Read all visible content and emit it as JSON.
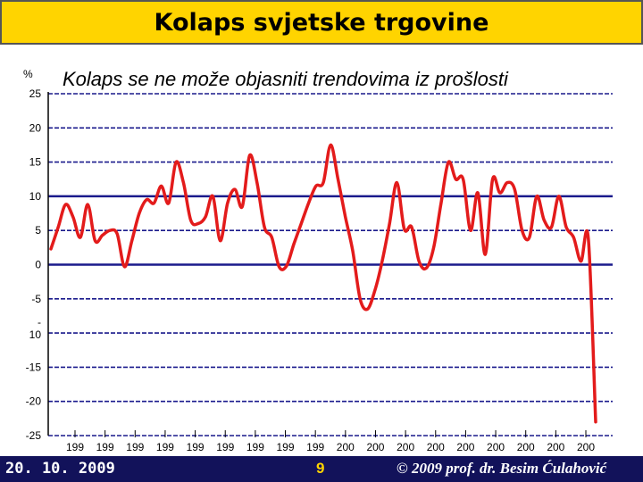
{
  "slide": {
    "title": "Kolaps svjetske trgovine",
    "footer_date": "20. 10. 2009",
    "page_number": "9",
    "copyright": "© 2009 prof. dr. Besim Ćulahović"
  },
  "colors": {
    "title_bar": "#ffd400",
    "footer": "#12125a",
    "line": "#e31b1b",
    "grid": "#1a1a8c"
  },
  "chart_data": {
    "type": "line",
    "title": "Kolaps se ne može objasniti trendovima iz prošlosti",
    "ylabel": "%",
    "ylim": [
      -25,
      25
    ],
    "yticks": [
      {
        "value": 25,
        "label": "25"
      },
      {
        "value": 20,
        "label": "20"
      },
      {
        "value": 15,
        "label": "15"
      },
      {
        "value": 10,
        "label": "10"
      },
      {
        "value": 5,
        "label": "5"
      },
      {
        "value": 0,
        "label": "0"
      },
      {
        "value": -5,
        "label": "-5"
      },
      {
        "value": -10,
        "label": "-\n10"
      },
      {
        "value": -15,
        "label": "-15"
      },
      {
        "value": -20,
        "label": "-20"
      },
      {
        "value": -25,
        "label": "-25"
      }
    ],
    "xticks": [
      "199",
      "199",
      "199",
      "199",
      "199",
      "199",
      "199",
      "199",
      "199",
      "200",
      "200",
      "200",
      "200",
      "200",
      "200",
      "200",
      "200",
      "200"
    ],
    "grid": true,
    "series": [
      {
        "values": [
          2.3,
          5.5,
          8.8,
          7,
          4,
          8.8,
          3.5,
          4.3,
          5,
          4.5,
          -0.3,
          3.5,
          7.5,
          9.5,
          9,
          11.5,
          9,
          15,
          12,
          6.5,
          6,
          7,
          10,
          3.5,
          9,
          11,
          8.5,
          16,
          12,
          5.5,
          4,
          -0.3,
          -0.2,
          3,
          6,
          9,
          11.5,
          12,
          17.5,
          12.5,
          7,
          2,
          -5,
          -6.5,
          -3.8,
          0.5,
          6,
          12,
          5.2,
          5.5,
          0.5,
          -0.5,
          2.5,
          9,
          15,
          12.5,
          12.5,
          5,
          10.5,
          1.5,
          12.5,
          10.5,
          12,
          11,
          5,
          4,
          10,
          6.5,
          5.5,
          10,
          5.5,
          4,
          0.5,
          3.8,
          -23
        ]
      }
    ]
  }
}
